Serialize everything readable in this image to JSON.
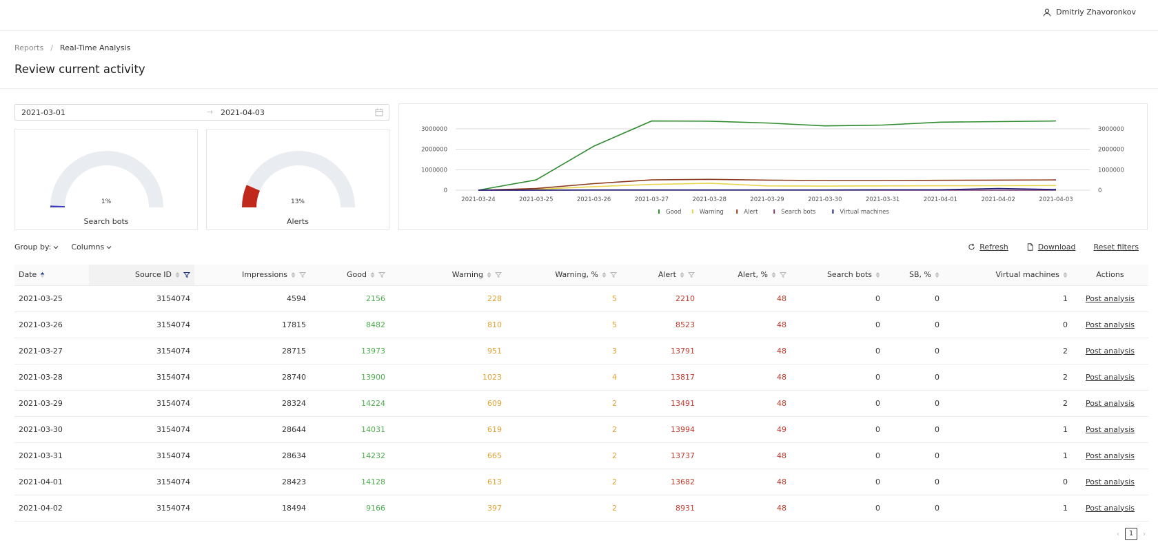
{
  "header": {
    "user_name": "Dmitriy Zhavoronkov"
  },
  "breadcrumb": {
    "items": [
      "Reports",
      "Real-Time Analysis"
    ],
    "separator": "/"
  },
  "page": {
    "title": "Review current activity"
  },
  "date_range": {
    "start": "2021-03-01",
    "end": "2021-04-03",
    "arrow": "→"
  },
  "gauges": [
    {
      "label": "Search bots",
      "percent_text": "1%",
      "value": 0.01,
      "color": "#3b3bbf"
    },
    {
      "label": "Alerts",
      "percent_text": "13%",
      "value": 0.13,
      "color": "#c0281c"
    }
  ],
  "chart_data": {
    "type": "line",
    "categories": [
      "2021-03-24",
      "2021-03-25",
      "2021-03-26",
      "2021-03-27",
      "2021-03-28",
      "2021-03-29",
      "2021-03-30",
      "2021-03-31",
      "2021-04-01",
      "2021-04-02",
      "2021-04-03"
    ],
    "y_ticks": [
      "0",
      "1000000",
      "2000000",
      "3000000"
    ],
    "ylim": [
      0,
      3500000
    ],
    "grid": true,
    "dual_axis": true,
    "legend_position": "bottom",
    "series": [
      {
        "name": "Good",
        "color": "#2e8b2e",
        "values": [
          0,
          500000,
          2150000,
          3380000,
          3370000,
          3280000,
          3140000,
          3180000,
          3320000,
          3350000,
          3380000
        ]
      },
      {
        "name": "Warning",
        "color": "#e8d44d",
        "values": [
          0,
          40000,
          170000,
          280000,
          340000,
          210000,
          200000,
          210000,
          215000,
          220000,
          225000
        ]
      },
      {
        "name": "Alert",
        "color": "#8b3a1f",
        "values": [
          0,
          80000,
          320000,
          500000,
          530000,
          490000,
          470000,
          470000,
          480000,
          490000,
          500000
        ]
      },
      {
        "name": "Search bots",
        "color": "#7b3a6e",
        "values": [
          0,
          0,
          0,
          0,
          0,
          0,
          0,
          0,
          0,
          0,
          0
        ]
      },
      {
        "name": "Virtual machines",
        "color": "#1b1b7a",
        "values": [
          0,
          5000,
          10000,
          10000,
          10000,
          10000,
          10000,
          20000,
          20000,
          80000,
          30000
        ]
      }
    ]
  },
  "toolbar": {
    "group_by": "Group by:",
    "columns": "Columns",
    "refresh": "Refresh",
    "download": "Download",
    "reset_filters": "Reset filters"
  },
  "table": {
    "columns": [
      "Date",
      "Source ID",
      "Impressions",
      "Good",
      "Warning",
      "Warning, %",
      "Alert",
      "Alert, %",
      "Search bots",
      "SB, %",
      "Virtual machines",
      "Actions"
    ],
    "action_label": "Post analysis",
    "rows": [
      [
        "2021-03-25",
        "3154074",
        "4594",
        "2156",
        "228",
        "5",
        "2210",
        "48",
        "0",
        "0",
        "1"
      ],
      [
        "2021-03-26",
        "3154074",
        "17815",
        "8482",
        "810",
        "5",
        "8523",
        "48",
        "0",
        "0",
        "0"
      ],
      [
        "2021-03-27",
        "3154074",
        "28715",
        "13973",
        "951",
        "3",
        "13791",
        "48",
        "0",
        "0",
        "2"
      ],
      [
        "2021-03-28",
        "3154074",
        "28740",
        "13900",
        "1023",
        "4",
        "13817",
        "48",
        "0",
        "0",
        "2"
      ],
      [
        "2021-03-29",
        "3154074",
        "28324",
        "14224",
        "609",
        "2",
        "13491",
        "48",
        "0",
        "0",
        "2"
      ],
      [
        "2021-03-30",
        "3154074",
        "28644",
        "14031",
        "619",
        "2",
        "13994",
        "49",
        "0",
        "0",
        "1"
      ],
      [
        "2021-03-31",
        "3154074",
        "28634",
        "14232",
        "665",
        "2",
        "13737",
        "48",
        "0",
        "0",
        "1"
      ],
      [
        "2021-04-01",
        "3154074",
        "28423",
        "14128",
        "613",
        "2",
        "13682",
        "48",
        "0",
        "0",
        "0"
      ],
      [
        "2021-04-02",
        "3154074",
        "18494",
        "9166",
        "397",
        "2",
        "8931",
        "48",
        "0",
        "0",
        "1"
      ]
    ]
  },
  "pagination": {
    "current_page": "1",
    "prev": "‹",
    "next": "›"
  }
}
